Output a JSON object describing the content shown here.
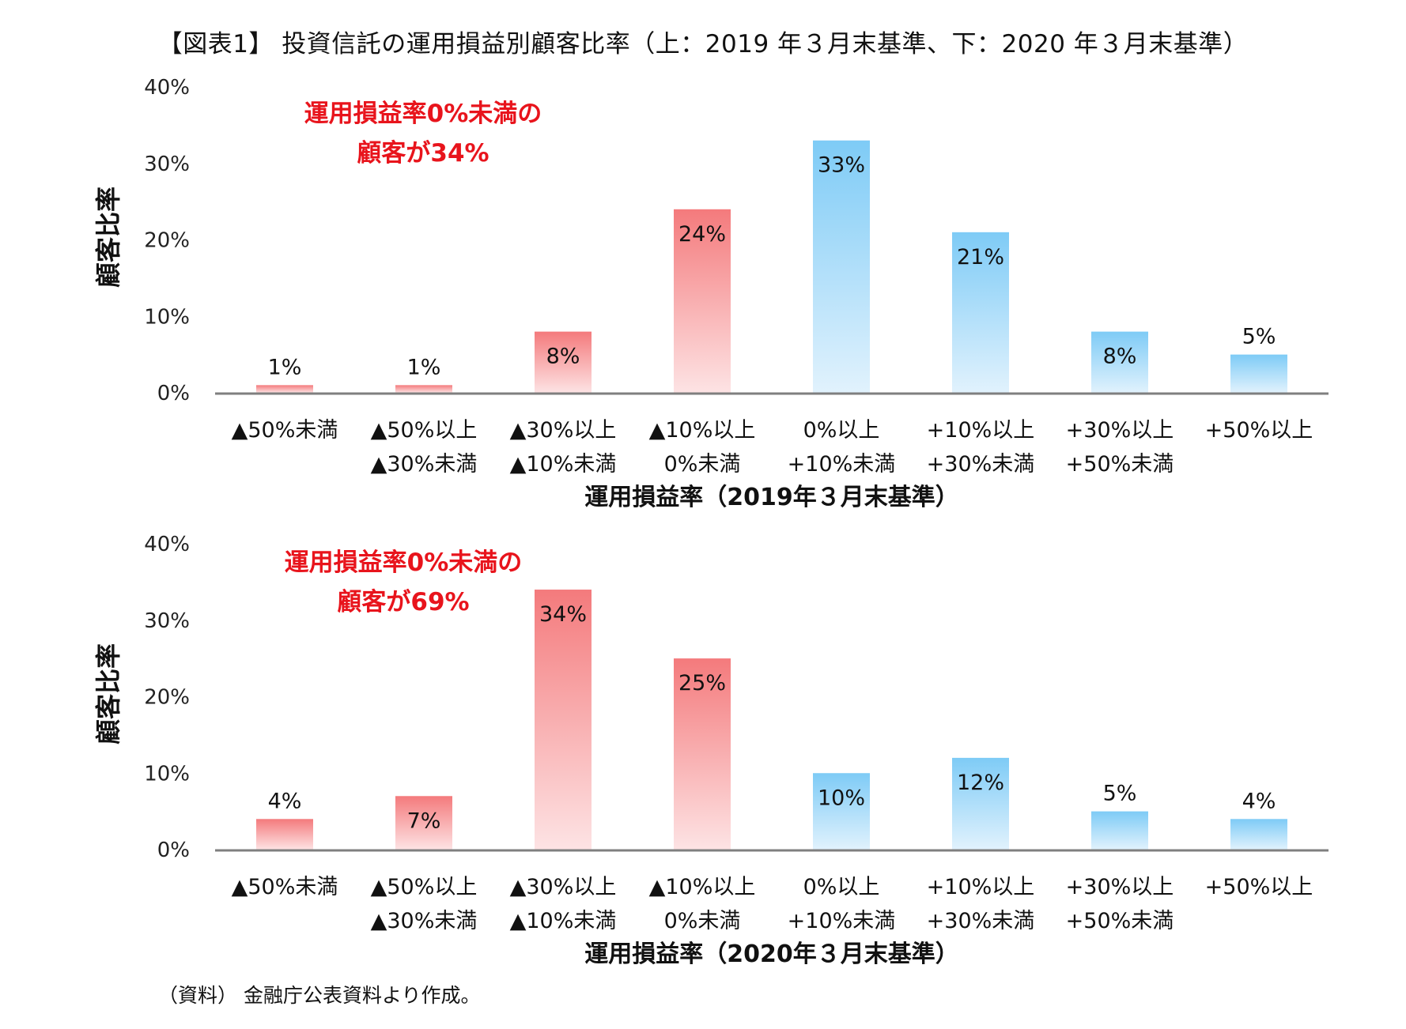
{
  "page": {
    "title": "【図表1】 投資信託の運用損益別顧客比率（上：2019 年３月末基準、下：2020 年３月末基準）",
    "source": "（資料） 金融庁公表資料より作成。"
  },
  "colors": {
    "negative_top": "#f47a7c",
    "negative_bottom": "#fde3e4",
    "positive_top": "#7ecbf6",
    "positive_bottom": "#e1f2fd",
    "axis": "#7f7f7f",
    "annotation": "#e8141c"
  },
  "chart_data": [
    {
      "type": "bar",
      "categories": [
        [
          "▲50%未満"
        ],
        [
          "▲50%以上",
          "▲30%未満"
        ],
        [
          "▲30%以上",
          "▲10%未満"
        ],
        [
          "▲10%以上",
          "0%未満"
        ],
        [
          "0%以上",
          "+10%未満"
        ],
        [
          "+10%以上",
          "+30%未満"
        ],
        [
          "+30%以上",
          "+50%未満"
        ],
        [
          "+50%以上"
        ]
      ],
      "values": [
        1,
        1,
        8,
        24,
        33,
        21,
        8,
        5
      ],
      "data_labels": [
        "1%",
        "1%",
        "8%",
        "24%",
        "33%",
        "21%",
        "8%",
        "5%"
      ],
      "sign": [
        "neg",
        "neg",
        "neg",
        "neg",
        "pos",
        "pos",
        "pos",
        "pos"
      ],
      "xlabel": "運用損益率（2019年３月末基準）",
      "ylabel": "顧客比率",
      "ylim": [
        0,
        40
      ],
      "yticks": [
        0,
        10,
        20,
        30,
        40
      ],
      "ytick_labels": [
        "0%",
        "10%",
        "20%",
        "30%",
        "40%"
      ],
      "annotation": [
        "運用損益率0%未満の",
        "顧客が34%"
      ],
      "grid": false,
      "legend": "none"
    },
    {
      "type": "bar",
      "categories": [
        [
          "▲50%未満"
        ],
        [
          "▲50%以上",
          "▲30%未満"
        ],
        [
          "▲30%以上",
          "▲10%未満"
        ],
        [
          "▲10%以上",
          "0%未満"
        ],
        [
          "0%以上",
          "+10%未満"
        ],
        [
          "+10%以上",
          "+30%未満"
        ],
        [
          "+30%以上",
          "+50%未満"
        ],
        [
          "+50%以上"
        ]
      ],
      "values": [
        4,
        7,
        34,
        25,
        10,
        12,
        5,
        4
      ],
      "data_labels": [
        "4%",
        "7%",
        "34%",
        "25%",
        "10%",
        "12%",
        "5%",
        "4%"
      ],
      "sign": [
        "neg",
        "neg",
        "neg",
        "neg",
        "pos",
        "pos",
        "pos",
        "pos"
      ],
      "xlabel": "運用損益率（2020年３月末基準）",
      "ylabel": "顧客比率",
      "ylim": [
        0,
        40
      ],
      "yticks": [
        0,
        10,
        20,
        30,
        40
      ],
      "ytick_labels": [
        "0%",
        "10%",
        "20%",
        "30%",
        "40%"
      ],
      "annotation": [
        "運用損益率0%未満の",
        "顧客が69%"
      ],
      "grid": false,
      "legend": "none"
    }
  ]
}
